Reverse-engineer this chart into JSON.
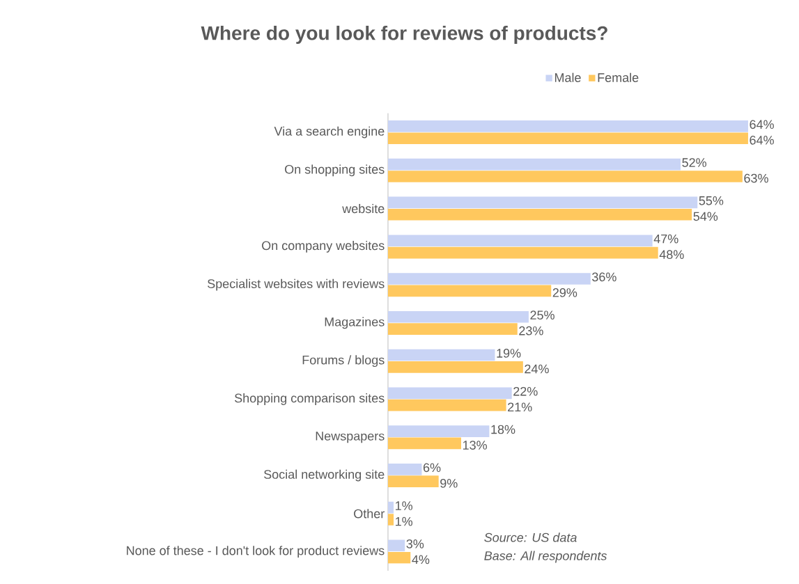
{
  "chart_data": {
    "type": "bar",
    "orientation": "horizontal",
    "title": "Where do you look for reviews of products?",
    "categories": [
      "Via a search engine",
      "On shopping sites",
      "website",
      "On company websites",
      "Specialist websites with reviews",
      "Magazines",
      "Forums / blogs",
      "Shopping comparison sites",
      "Newspapers",
      "Social networking site",
      "Other",
      "None of these - I don't look for product reviews"
    ],
    "series": [
      {
        "name": "Male",
        "color": "#c9d4f5",
        "values": [
          64,
          52,
          55,
          47,
          36,
          25,
          19,
          22,
          18,
          6,
          1,
          3
        ],
        "value_labels": [
          "64%",
          "52%",
          "55%",
          "47%",
          "36%",
          "25%",
          "19%",
          "22%",
          "18%",
          "6%",
          "1%",
          "3%"
        ]
      },
      {
        "name": "Female",
        "color": "#ffc85e",
        "values": [
          64,
          63,
          54,
          48,
          29,
          23,
          24,
          21,
          13,
          9,
          1,
          4
        ],
        "value_labels": [
          "64%",
          "63%",
          "54%",
          "48%",
          "29%",
          "23%",
          "24%",
          "21%",
          "13%",
          "9%",
          "1%",
          "4%"
        ]
      }
    ],
    "legend": "top",
    "annotations": [
      "Source: US data",
      "Base: All respondents"
    ]
  }
}
